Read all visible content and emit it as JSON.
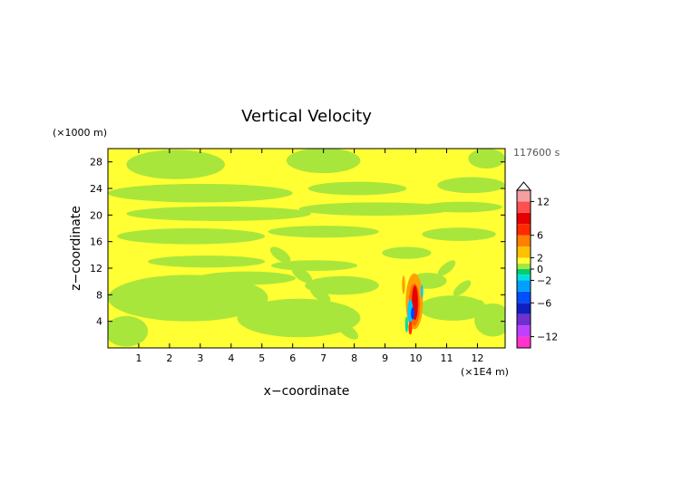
{
  "chart_data": {
    "type": "heatmap",
    "title": "Vertical Velocity",
    "xlabel": "x−coordinate",
    "ylabel": "z−coordinate",
    "x_unit": "(×1E4 m)",
    "y_unit": "(×1000 m)",
    "time_label": "117600 s",
    "xlim": [
      0,
      12.9
    ],
    "ylim": [
      0,
      30
    ],
    "x_ticks": [
      "1",
      "2",
      "3",
      "4",
      "5",
      "6",
      "7",
      "8",
      "9",
      "10",
      "11",
      "12"
    ],
    "y_ticks": [
      "4",
      "8",
      "12",
      "16",
      "20",
      "24",
      "28"
    ],
    "colorbar": {
      "range": [
        -14,
        14
      ],
      "tick_labels": [
        "12",
        "6",
        "2",
        "0",
        "−2",
        "−6",
        "−12"
      ],
      "tick_values": [
        12,
        6,
        2,
        0,
        -2,
        -6,
        -12
      ]
    },
    "colors": {
      "background_field": "#ffff33",
      "secondary_field": "#a8e63c",
      "positive_max": "#f5a0a0",
      "negative_max": "#ff33cc"
    }
  }
}
